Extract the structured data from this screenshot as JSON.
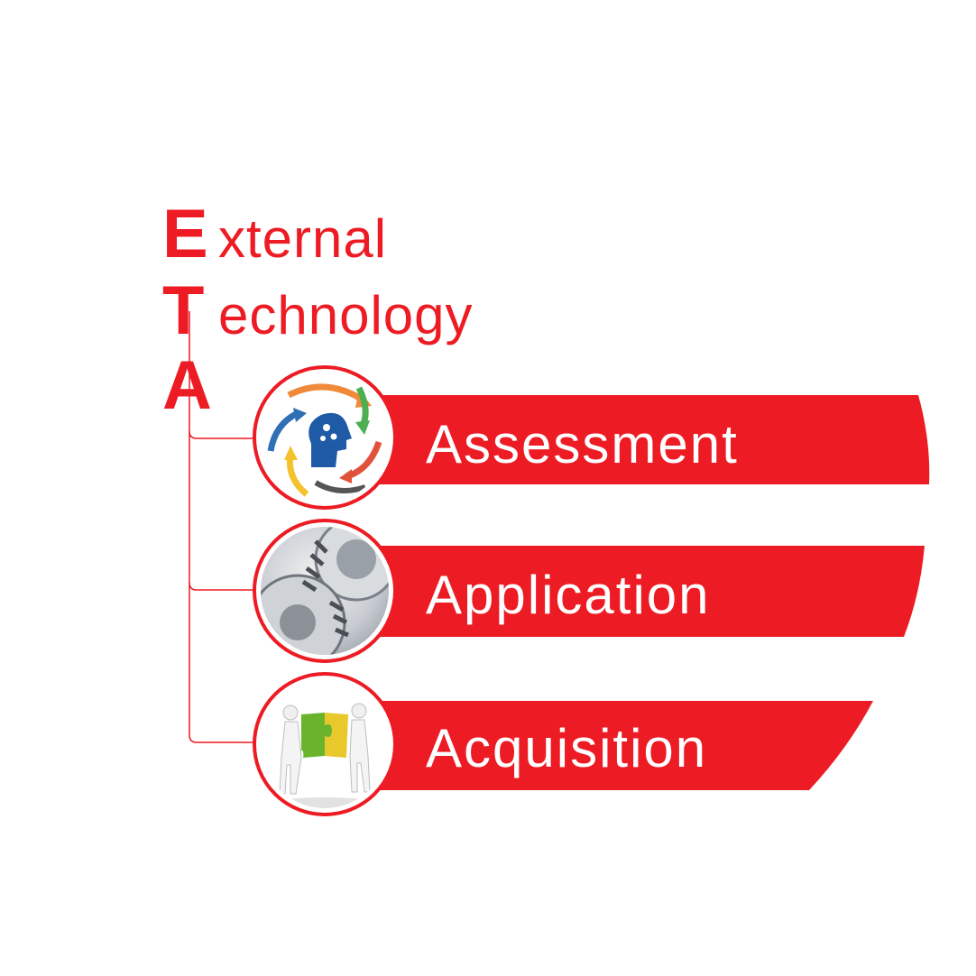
{
  "heading": {
    "lines": [
      {
        "initial": "E",
        "rest": "xternal"
      },
      {
        "initial": "T",
        "rest": "echnology"
      },
      {
        "initial": "A",
        "rest": ""
      }
    ]
  },
  "phases": [
    {
      "label": "Assessment",
      "icon": "head-gears-cycle-icon"
    },
    {
      "label": "Application",
      "icon": "gears-icon"
    },
    {
      "label": "Acquisition",
      "icon": "puzzle-people-icon"
    }
  ],
  "colors": {
    "accent": "#ed1c24",
    "text_on_accent": "#ffffff"
  }
}
